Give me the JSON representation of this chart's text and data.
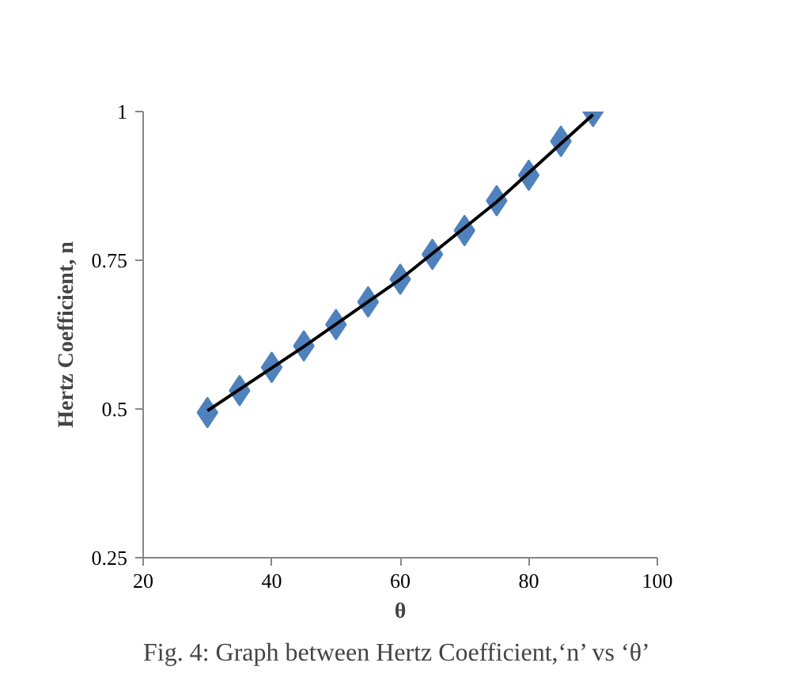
{
  "chart_data": {
    "type": "scatter",
    "xlabel": "θ",
    "ylabel": "Hertz Coefficient, n",
    "annotations": [
      "Fig. 4: Graph between Hertz Coefficient,‘n’ vs ‘θ’"
    ],
    "x": [
      30,
      35,
      40,
      45,
      50,
      55,
      60,
      65,
      70,
      75,
      80,
      85,
      90
    ],
    "series": [
      {
        "color": "#4f81bd",
        "values": [
          0.494,
          0.531,
          0.57,
          0.606,
          0.642,
          0.68,
          0.718,
          0.76,
          0.8,
          0.85,
          0.893,
          0.95,
          1.0
        ],
        "marker": "diamond"
      },
      {
        "type": "line",
        "color": "#000000",
        "x": [
          30,
          45,
          60,
          75,
          90
        ],
        "values": [
          0.497,
          0.605,
          0.718,
          0.848,
          0.995
        ]
      }
    ],
    "xlim": [
      20,
      100
    ],
    "xticks": [
      20,
      40,
      60,
      80,
      100
    ],
    "ylim": [
      0.25,
      1
    ],
    "yticks": [
      0.25,
      0.5,
      0.75,
      1
    ],
    "grid": false
  }
}
